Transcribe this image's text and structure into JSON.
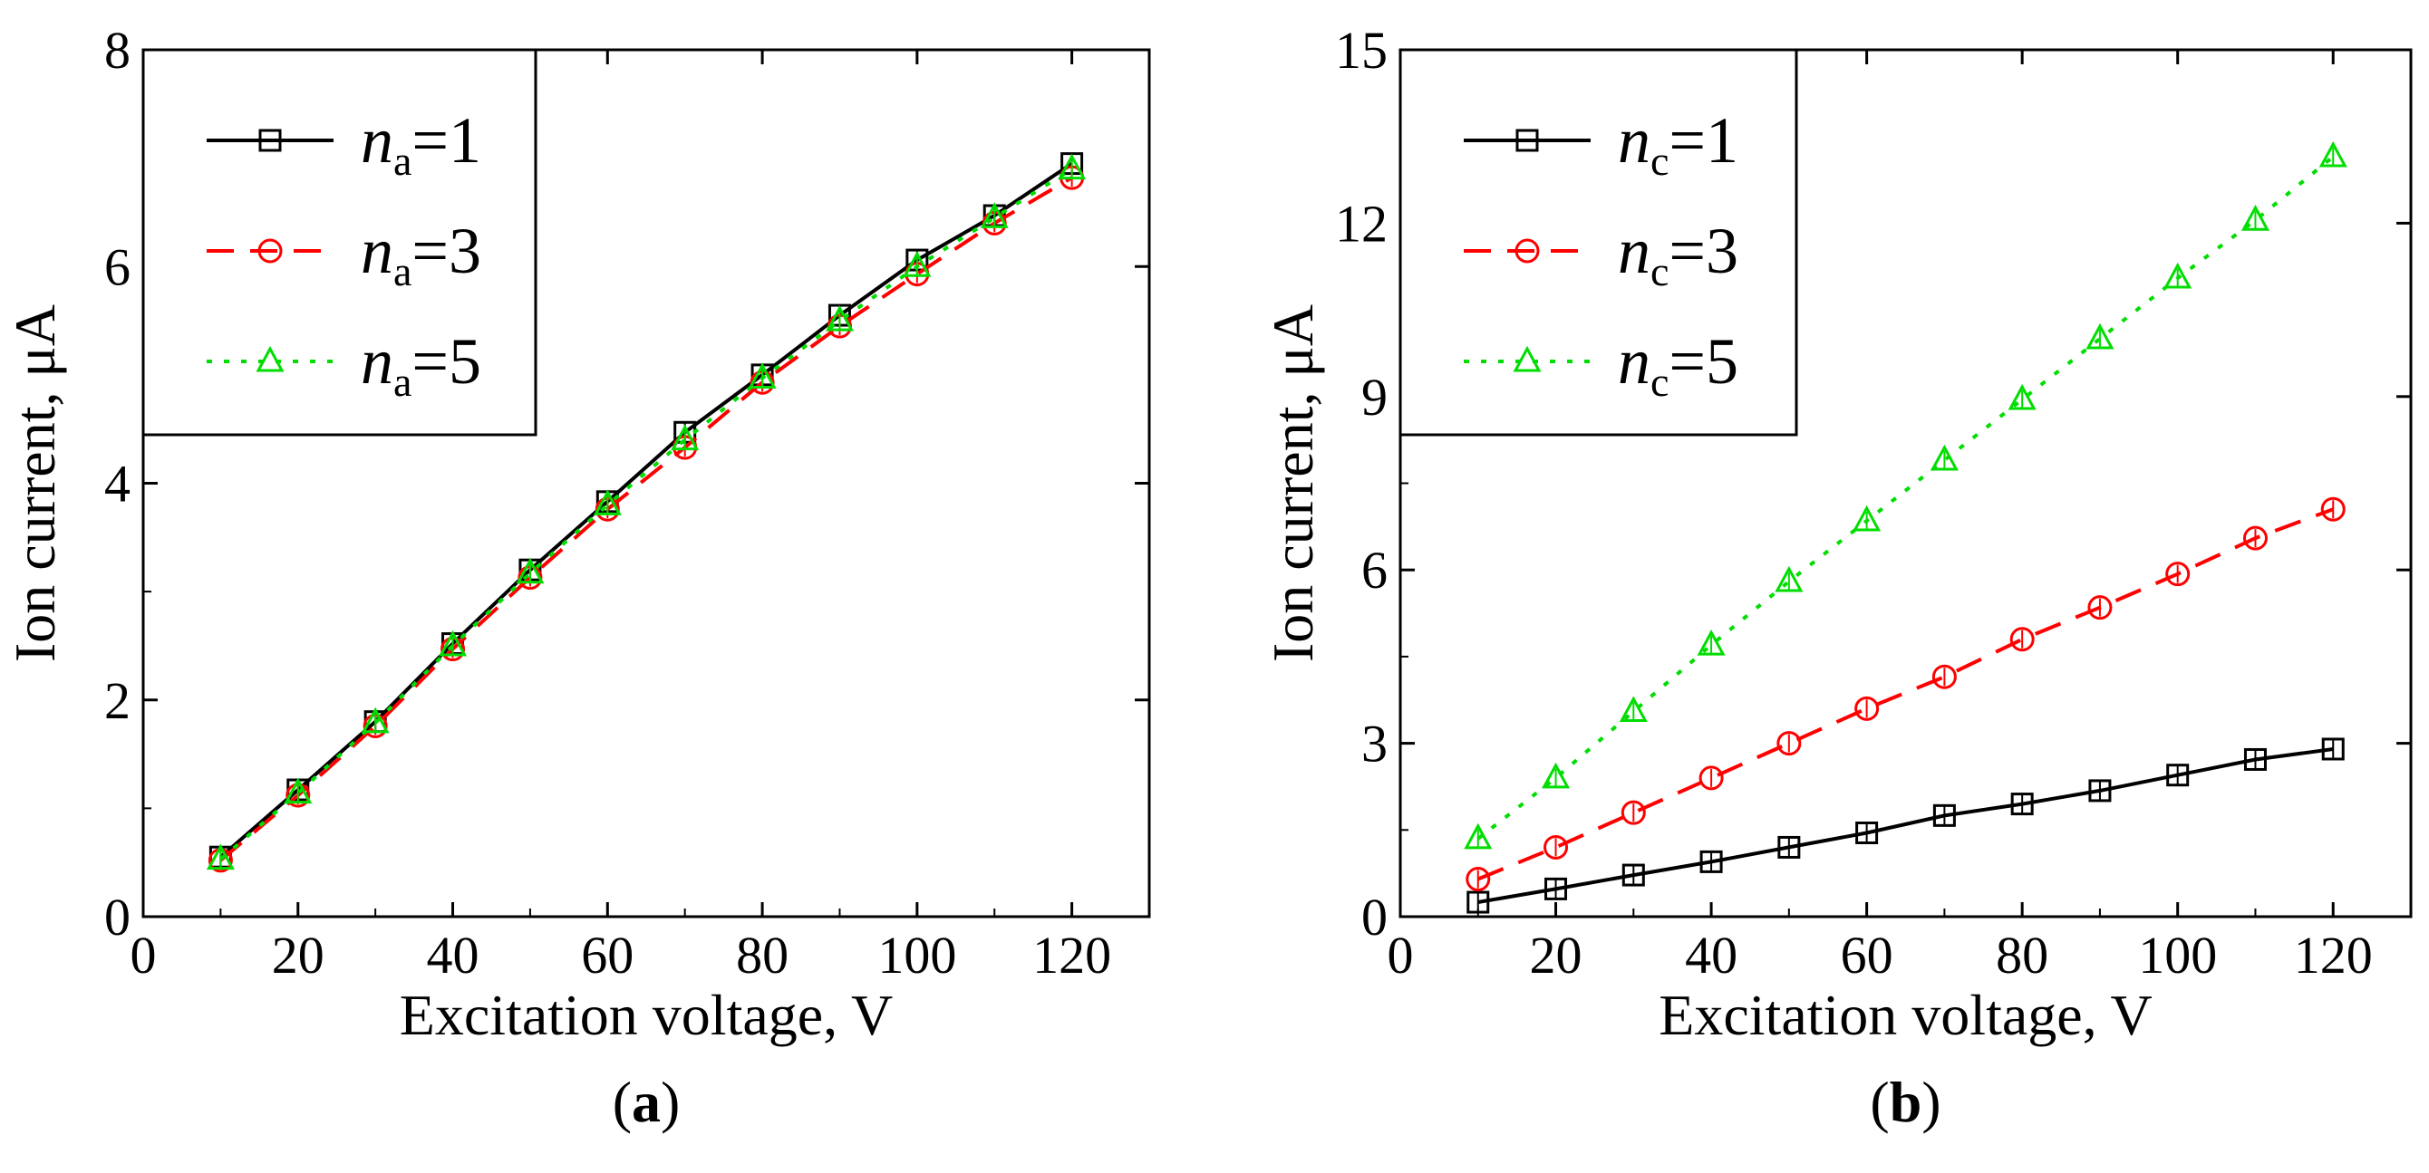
{
  "colors": {
    "series_1": "#000000",
    "series_3": "#ff0000",
    "series_5": "#00dd00",
    "axis": "#000000",
    "background": "#ffffff"
  },
  "chart_data": [
    {
      "type": "line",
      "panel_label": "a",
      "xlabel": "Excitation voltage, V",
      "ylabel": "Ion current, μA",
      "xlim": [
        0,
        130
      ],
      "ylim": [
        0,
        8
      ],
      "xticks": [
        0,
        20,
        40,
        60,
        80,
        100,
        120
      ],
      "xtick_labels": [
        "0",
        "20",
        "40",
        "60",
        "80",
        "100",
        "120"
      ],
      "yticks": [
        0,
        2,
        4,
        6,
        8
      ],
      "ytick_labels": [
        "0",
        "2",
        "4",
        "6",
        "8"
      ],
      "grid": false,
      "legend_position": "top-left",
      "x": [
        10,
        20,
        30,
        40,
        50,
        60,
        70,
        80,
        90,
        100,
        110,
        120
      ],
      "series": [
        {
          "name": "n_a=1",
          "legend_var": "n",
          "legend_sub": "a",
          "legend_val": "=1",
          "color": "#000000",
          "dash": "solid",
          "marker": "square",
          "values": [
            0.55,
            1.17,
            1.8,
            2.52,
            3.2,
            3.83,
            4.47,
            5.0,
            5.55,
            6.06,
            6.47,
            6.95
          ]
        },
        {
          "name": "n_a=3",
          "legend_var": "n",
          "legend_sub": "a",
          "legend_val": "=3",
          "color": "#ff0000",
          "dash": "dashed",
          "marker": "circle",
          "values": [
            0.52,
            1.12,
            1.76,
            2.47,
            3.13,
            3.76,
            4.33,
            4.93,
            5.45,
            5.93,
            6.4,
            6.82
          ]
        },
        {
          "name": "n_a=5",
          "legend_var": "n",
          "legend_sub": "a",
          "legend_val": "=5",
          "color": "#00dd00",
          "dash": "dotted",
          "marker": "triangle",
          "values": [
            0.53,
            1.14,
            1.79,
            2.5,
            3.17,
            3.8,
            4.4,
            4.97,
            5.5,
            6.0,
            6.45,
            6.9
          ]
        }
      ]
    },
    {
      "type": "line",
      "panel_label": "b",
      "xlabel": "Excitation voltage, V",
      "ylabel": "Ion current, μA",
      "xlim": [
        0,
        130
      ],
      "ylim": [
        0,
        15
      ],
      "xticks": [
        0,
        20,
        40,
        60,
        80,
        100,
        120
      ],
      "xtick_labels": [
        "0",
        "20",
        "40",
        "60",
        "80",
        "100",
        "120"
      ],
      "yticks": [
        0,
        3,
        6,
        9,
        12,
        15
      ],
      "ytick_labels": [
        "0",
        "3",
        "6",
        "9",
        "12",
        "15"
      ],
      "grid": false,
      "legend_position": "top-left",
      "x": [
        10,
        20,
        30,
        40,
        50,
        60,
        70,
        80,
        90,
        100,
        110,
        120
      ],
      "series": [
        {
          "name": "n_c=1",
          "legend_var": "n",
          "legend_sub": "c",
          "legend_val": "=1",
          "color": "#000000",
          "dash": "solid",
          "marker": "square",
          "values": [
            0.25,
            0.48,
            0.72,
            0.95,
            1.2,
            1.45,
            1.75,
            1.95,
            2.18,
            2.45,
            2.72,
            2.9
          ]
        },
        {
          "name": "n_c=3",
          "legend_var": "n",
          "legend_sub": "c",
          "legend_val": "=3",
          "color": "#ff0000",
          "dash": "dashed",
          "marker": "circle",
          "values": [
            0.65,
            1.2,
            1.8,
            2.4,
            3.0,
            3.6,
            4.15,
            4.8,
            5.35,
            5.93,
            6.55,
            7.05
          ]
        },
        {
          "name": "n_c=5",
          "legend_var": "n",
          "legend_sub": "c",
          "legend_val": "=5",
          "color": "#00dd00",
          "dash": "dotted",
          "marker": "triangle",
          "values": [
            1.35,
            2.4,
            3.55,
            4.7,
            5.8,
            6.85,
            7.9,
            8.95,
            10.0,
            11.05,
            12.05,
            13.15
          ]
        }
      ]
    }
  ]
}
